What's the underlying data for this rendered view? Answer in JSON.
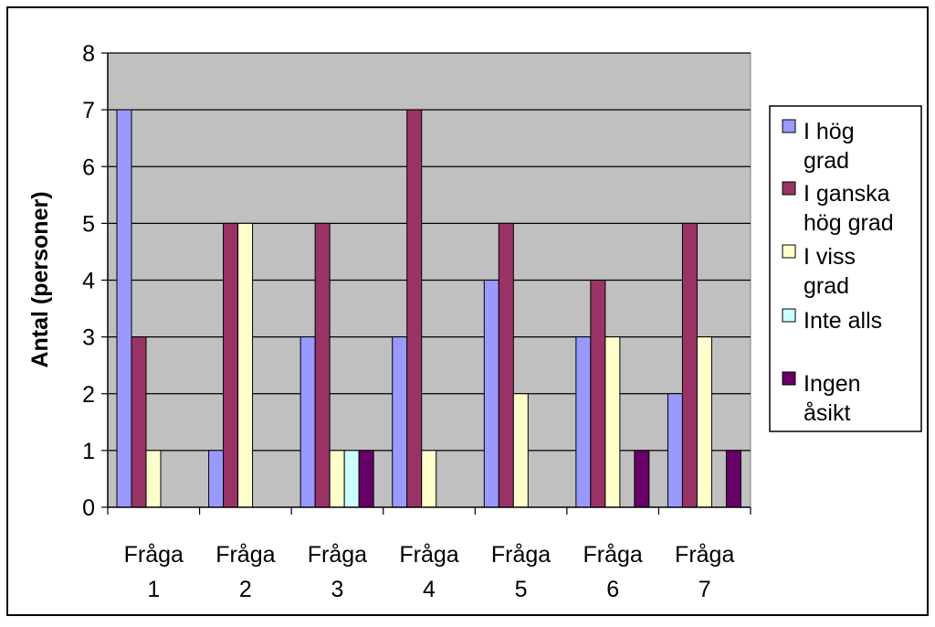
{
  "chart_data": {
    "type": "bar",
    "title": "",
    "xlabel": "",
    "ylabel": "Antal (personer)",
    "ylim": [
      0,
      8
    ],
    "yticks": [
      0,
      1,
      2,
      3,
      4,
      5,
      6,
      7,
      8
    ],
    "categories": [
      [
        "Fråga",
        "1"
      ],
      [
        "Fråga",
        "2"
      ],
      [
        "Fråga",
        "3"
      ],
      [
        "Fråga",
        "4"
      ],
      [
        "Fråga",
        "5"
      ],
      [
        "Fråga",
        "6"
      ],
      [
        "Fråga",
        "7"
      ]
    ],
    "series": [
      {
        "name": "I hög grad",
        "legend_lines": [
          "I hög",
          "grad"
        ],
        "color": "#9999ff",
        "values": [
          7,
          1,
          3,
          3,
          4,
          3,
          2
        ]
      },
      {
        "name": "I ganska hög grad",
        "legend_lines": [
          "I ganska",
          "hög grad"
        ],
        "color": "#993366",
        "values": [
          3,
          5,
          5,
          7,
          5,
          4,
          5
        ]
      },
      {
        "name": "I viss grad",
        "legend_lines": [
          "I viss",
          "grad"
        ],
        "color": "#ffffcc",
        "values": [
          1,
          5,
          1,
          1,
          2,
          3,
          3
        ]
      },
      {
        "name": "Inte alls",
        "legend_lines": [
          "Inte alls"
        ],
        "color": "#ccffff",
        "values": [
          0,
          0,
          1,
          0,
          0,
          0,
          0
        ]
      },
      {
        "name": "Ingen åsikt",
        "legend_lines": [
          "Ingen",
          "åsikt"
        ],
        "color": "#660066",
        "values": [
          0,
          0,
          1,
          0,
          0,
          1,
          1
        ]
      }
    ],
    "plot_background": "#c0c0c0",
    "grid": true,
    "legend_position": "right"
  }
}
